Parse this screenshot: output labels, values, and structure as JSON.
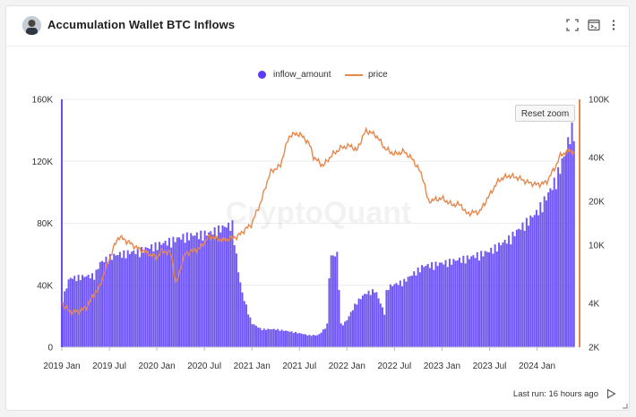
{
  "header": {
    "title": "Accumulation Wallet BTC Inflows"
  },
  "icons": {
    "fullscreen": "fullscreen-icon",
    "console": "terminal-icon",
    "more": "more-vertical-icon"
  },
  "reset_zoom": "Reset zoom",
  "watermark": "CryptoQuant",
  "footer": {
    "last_run": "Last run: 16 hours ago"
  },
  "colors": {
    "bars": "#5b3cf5",
    "bar_edge": "#3a1fe0",
    "price": "#e8874b",
    "accent_left": "#6a4cff"
  },
  "chart_data": {
    "type": "bar+line",
    "title": "Accumulation Wallet BTC Inflows",
    "legend": [
      "inflow_amount",
      "price"
    ],
    "x_ticks": [
      "2019 Jan",
      "2019 Jul",
      "2020 Jan",
      "2020 Jul",
      "2021 Jan",
      "2021 Jul",
      "2022 Jan",
      "2022 Jul",
      "2023 Jan",
      "2023 Jul",
      "2024 Jan"
    ],
    "y_left": {
      "name": "inflow_amount",
      "ticks": [
        "0",
        "40K",
        "80K",
        "120K",
        "160K"
      ],
      "range": [
        0,
        160000
      ]
    },
    "y_right": {
      "name": "price",
      "scale": "log",
      "ticks": [
        "2K",
        "4K",
        "10K",
        "20K",
        "40K",
        "100K"
      ],
      "range": [
        2000,
        100000
      ]
    },
    "series": [
      {
        "name": "inflow_amount",
        "kind": "bar",
        "points": [
          [
            0.0,
            30000
          ],
          [
            0.08,
            46000
          ],
          [
            0.35,
            48000
          ],
          [
            0.4,
            56000
          ],
          [
            0.5,
            60000
          ],
          [
            0.6,
            62000
          ],
          [
            0.8,
            64000
          ],
          [
            1.0,
            68000
          ],
          [
            1.3,
            74000
          ],
          [
            1.55,
            76000
          ],
          [
            1.7,
            80000
          ],
          [
            1.8,
            82000
          ],
          [
            1.82,
            70000
          ],
          [
            1.86,
            50000
          ],
          [
            1.9,
            36000
          ],
          [
            1.95,
            26000
          ],
          [
            2.0,
            16000
          ],
          [
            2.1,
            12000
          ],
          [
            2.25,
            12000
          ],
          [
            2.45,
            10000
          ],
          [
            2.6,
            8000
          ],
          [
            2.7,
            8000
          ],
          [
            2.76,
            12000
          ],
          [
            2.8,
            16000
          ],
          [
            2.82,
            60000
          ],
          [
            2.9,
            62000
          ],
          [
            2.94,
            14000
          ],
          [
            3.0,
            18000
          ],
          [
            3.1,
            30000
          ],
          [
            3.2,
            36000
          ],
          [
            3.3,
            38000
          ],
          [
            3.4,
            22000
          ],
          [
            3.42,
            40000
          ],
          [
            3.6,
            44000
          ],
          [
            3.8,
            54000
          ],
          [
            4.0,
            56000
          ],
          [
            4.3,
            60000
          ],
          [
            4.5,
            64000
          ],
          [
            4.7,
            72000
          ],
          [
            4.9,
            84000
          ],
          [
            5.0,
            90000
          ],
          [
            5.1,
            100000
          ],
          [
            5.2,
            112000
          ],
          [
            5.3,
            130000
          ],
          [
            5.36,
            145000
          ],
          [
            5.4,
            145000
          ]
        ]
      },
      {
        "name": "price",
        "kind": "line",
        "points": [
          [
            0.0,
            4000
          ],
          [
            0.08,
            3500
          ],
          [
            0.15,
            3500
          ],
          [
            0.25,
            3700
          ],
          [
            0.4,
            5200
          ],
          [
            0.5,
            8000
          ],
          [
            0.6,
            11500
          ],
          [
            0.7,
            10500
          ],
          [
            0.8,
            9500
          ],
          [
            1.0,
            8200
          ],
          [
            1.05,
            9200
          ],
          [
            1.15,
            8800
          ],
          [
            1.2,
            5200
          ],
          [
            1.3,
            8800
          ],
          [
            1.45,
            9500
          ],
          [
            1.55,
            11500
          ],
          [
            1.7,
            10800
          ],
          [
            1.85,
            11500
          ],
          [
            2.0,
            14000
          ],
          [
            2.1,
            20000
          ],
          [
            2.2,
            32000
          ],
          [
            2.3,
            35000
          ],
          [
            2.4,
            57000
          ],
          [
            2.5,
            58000
          ],
          [
            2.6,
            50000
          ],
          [
            2.65,
            40000
          ],
          [
            2.75,
            35000
          ],
          [
            2.85,
            42000
          ],
          [
            2.95,
            47000
          ],
          [
            3.05,
            48000
          ],
          [
            3.1,
            44000
          ],
          [
            3.2,
            61000
          ],
          [
            3.3,
            57000
          ],
          [
            3.4,
            46000
          ],
          [
            3.5,
            42000
          ],
          [
            3.6,
            44000
          ],
          [
            3.7,
            38000
          ],
          [
            3.8,
            29000
          ],
          [
            3.85,
            20000
          ],
          [
            4.0,
            21000
          ],
          [
            4.1,
            19000
          ],
          [
            4.2,
            19000
          ],
          [
            4.25,
            16500
          ],
          [
            4.4,
            17000
          ],
          [
            4.5,
            22000
          ],
          [
            4.6,
            28000
          ],
          [
            4.7,
            30000
          ],
          [
            4.8,
            29000
          ],
          [
            4.9,
            27000
          ],
          [
            5.0,
            26000
          ],
          [
            5.1,
            27000
          ],
          [
            5.2,
            35000
          ],
          [
            5.25,
            42000
          ],
          [
            5.3,
            43000
          ],
          [
            5.35,
            45000
          ],
          [
            5.4,
            42000
          ]
        ]
      }
    ]
  }
}
